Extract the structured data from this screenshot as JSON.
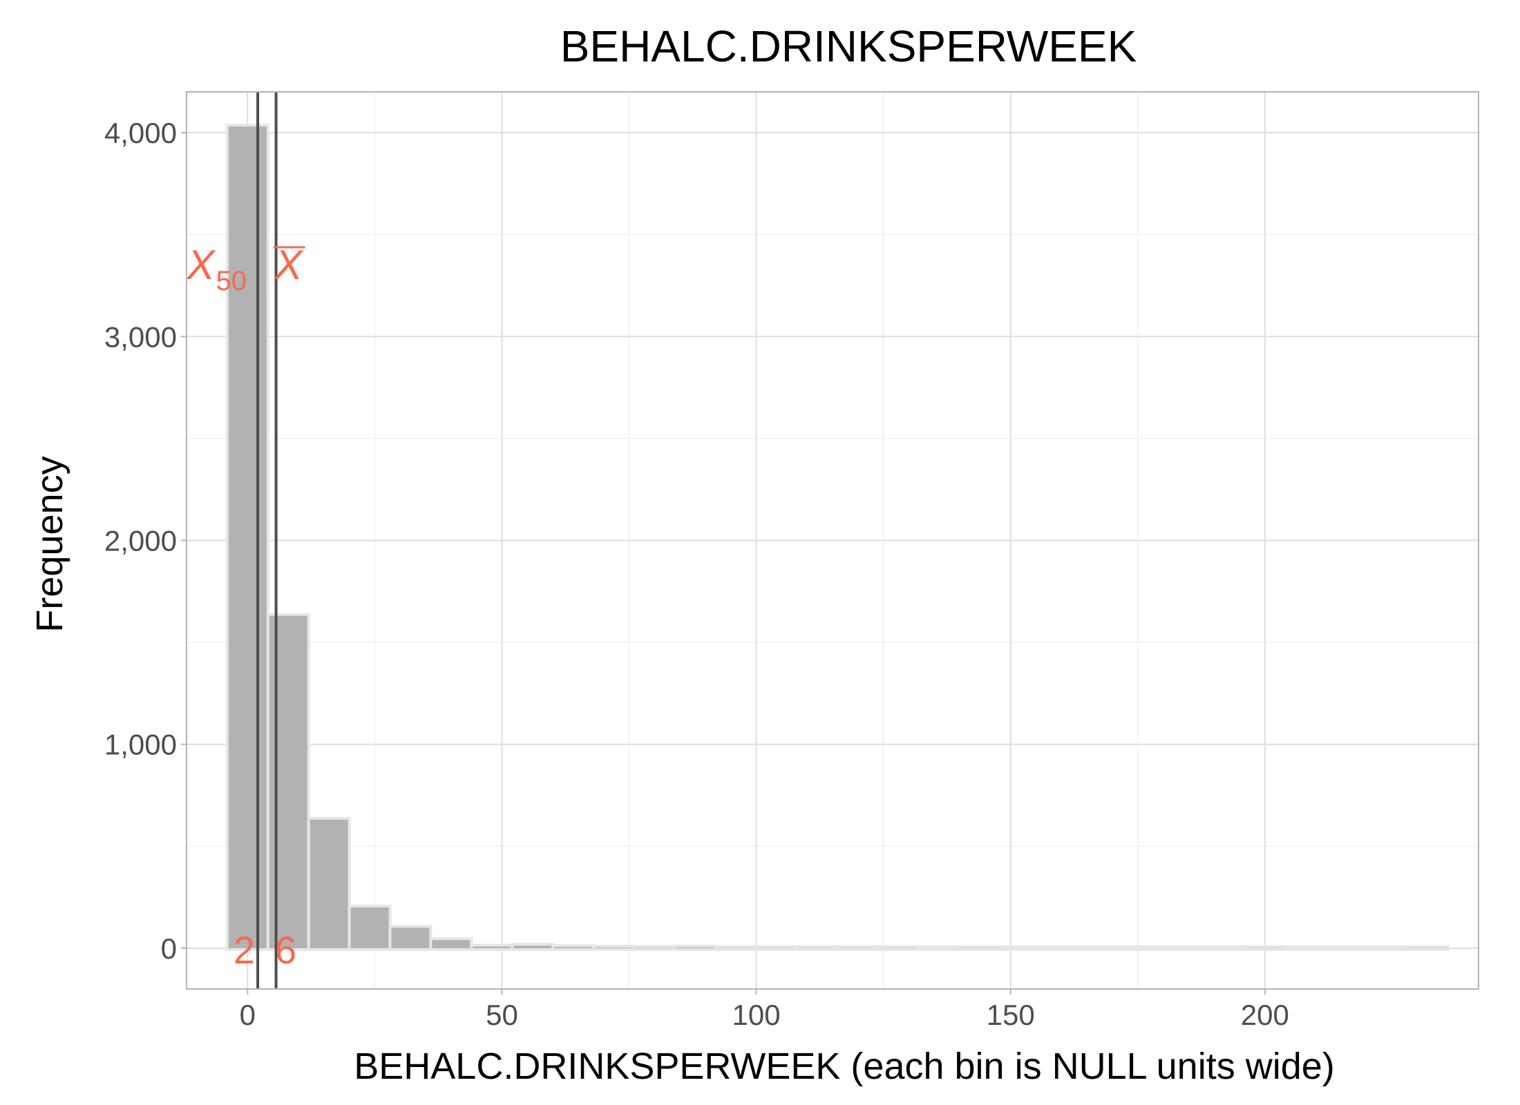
{
  "chart_data": {
    "type": "bar",
    "title": "BEHALC.DRINKSPERWEEK",
    "xlabel": "BEHALC.DRINKSPERWEEK (each bin is NULL units wide)",
    "ylabel": "Frequency",
    "xlim": [
      -12,
      242
    ],
    "ylim": [
      -200,
      4200
    ],
    "x_ticks": [
      0,
      50,
      100,
      150,
      200
    ],
    "x_tick_labels": [
      "0",
      "50",
      "100",
      "150",
      "200"
    ],
    "y_ticks": [
      0,
      1000,
      2000,
      3000,
      4000
    ],
    "y_tick_labels": [
      "0",
      "1,000",
      "2,000",
      "3,000",
      "4,000"
    ],
    "grid": true,
    "bin_width": 8,
    "bins": [
      {
        "x0": -4,
        "x1": 4,
        "count": 4030
      },
      {
        "x0": 4,
        "x1": 12,
        "count": 1630
      },
      {
        "x0": 12,
        "x1": 20,
        "count": 630
      },
      {
        "x0": 20,
        "x1": 28,
        "count": 200
      },
      {
        "x0": 28,
        "x1": 36,
        "count": 100
      },
      {
        "x0": 36,
        "x1": 44,
        "count": 40
      },
      {
        "x0": 44,
        "x1": 52,
        "count": 8
      },
      {
        "x0": 52,
        "x1": 60,
        "count": 12
      },
      {
        "x0": 60,
        "x1": 68,
        "count": 6
      },
      {
        "x0": 68,
        "x1": 76,
        "count": 3
      },
      {
        "x0": 76,
        "x1": 84,
        "count": 2
      },
      {
        "x0": 84,
        "x1": 92,
        "count": 4
      },
      {
        "x0": 92,
        "x1": 100,
        "count": 1
      },
      {
        "x0": 100,
        "x1": 108,
        "count": 1
      },
      {
        "x0": 108,
        "x1": 116,
        "count": 1
      },
      {
        "x0": 116,
        "x1": 124,
        "count": 1
      },
      {
        "x0": 124,
        "x1": 132,
        "count": 1
      },
      {
        "x0": 132,
        "x1": 140,
        "count": 0
      },
      {
        "x0": 140,
        "x1": 148,
        "count": 1
      },
      {
        "x0": 148,
        "x1": 156,
        "count": 0
      },
      {
        "x0": 156,
        "x1": 164,
        "count": 0
      },
      {
        "x0": 164,
        "x1": 172,
        "count": 0
      },
      {
        "x0": 172,
        "x1": 180,
        "count": 0
      },
      {
        "x0": 180,
        "x1": 188,
        "count": 0
      },
      {
        "x0": 188,
        "x1": 196,
        "count": 0
      },
      {
        "x0": 196,
        "x1": 204,
        "count": 1
      },
      {
        "x0": 204,
        "x1": 212,
        "count": 0
      },
      {
        "x0": 212,
        "x1": 220,
        "count": 0
      },
      {
        "x0": 220,
        "x1": 228,
        "count": 0
      },
      {
        "x0": 228,
        "x1": 236,
        "count": 1
      }
    ],
    "reference_lines": [
      {
        "name": "median",
        "symbol": "X",
        "subscript": "50",
        "x": 2,
        "label": "2"
      },
      {
        "name": "mean",
        "symbol": "X",
        "overline": true,
        "x": 5.6,
        "label": "6"
      }
    ],
    "colors": {
      "bar_fill": "#b2b2b2",
      "bar_outline": "#e6e6e6",
      "grid": "#dedede",
      "grid_minor": "#efefef",
      "panel_border": "#b3b3b3",
      "ref_line": "#4d4d4d",
      "annotation": "#f8694d"
    }
  }
}
